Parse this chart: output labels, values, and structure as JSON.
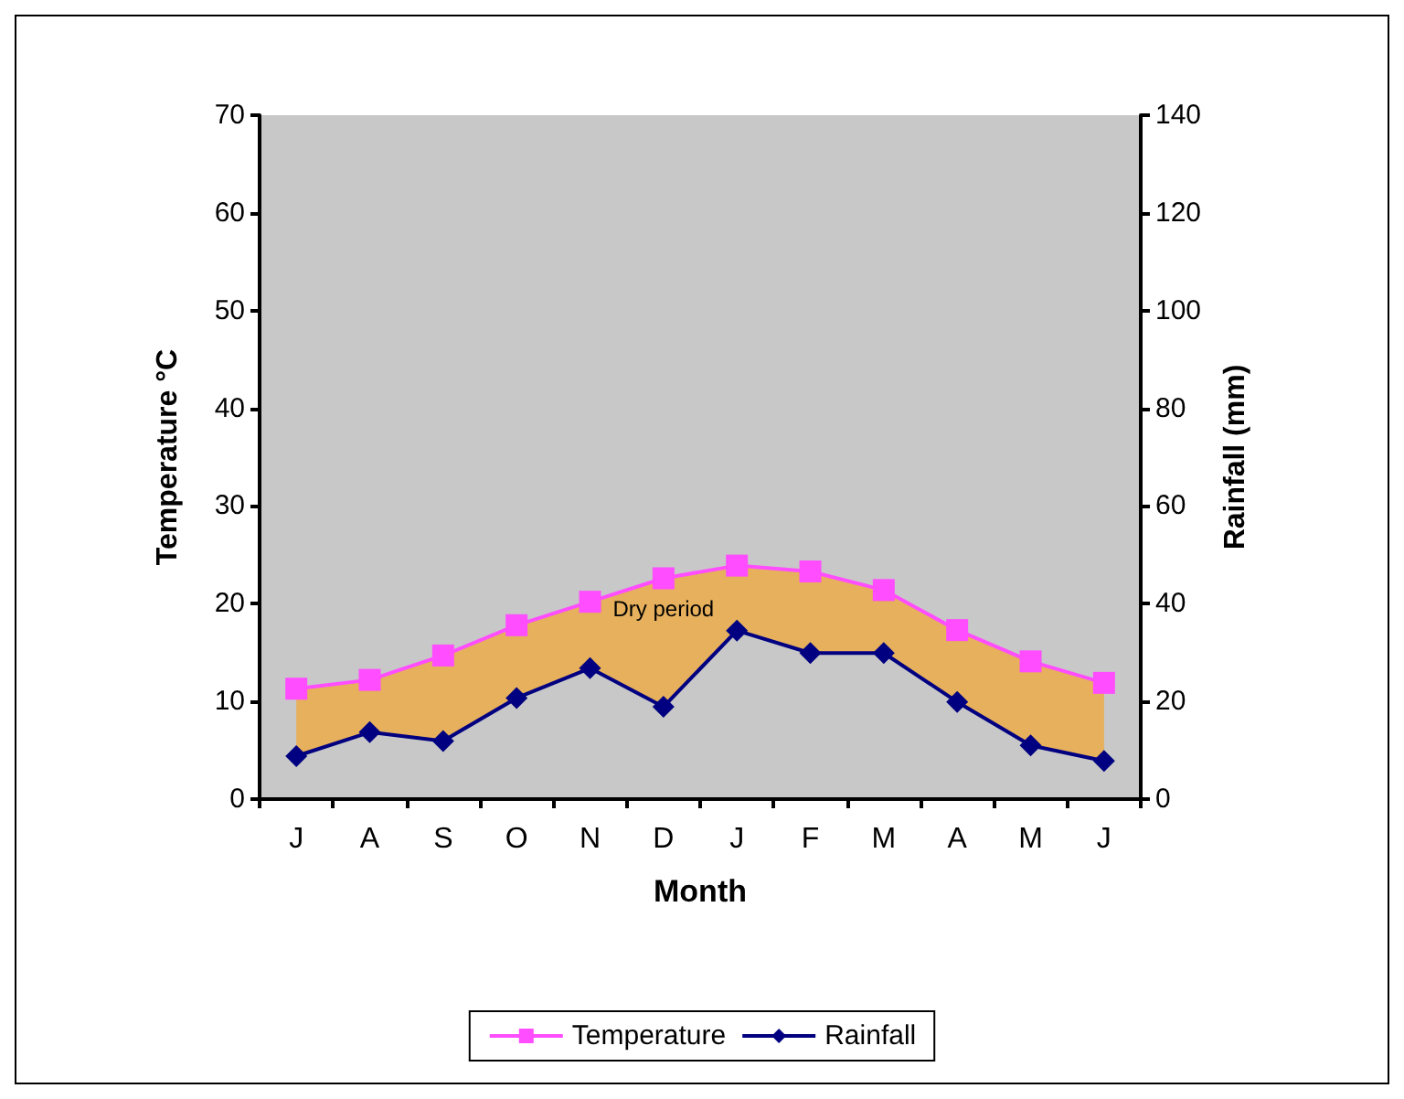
{
  "chart_data": {
    "type": "line",
    "xlabel": "Month",
    "ylabel": "Temperature °C",
    "y2label": "Rainfall (mm)",
    "categories": [
      "J",
      "A",
      "S",
      "O",
      "N",
      "D",
      "J",
      "F",
      "M",
      "A",
      "M",
      "J"
    ],
    "series": [
      {
        "name": "Temperature",
        "color": "#ff4dff",
        "marker": "square",
        "values": [
          11.3,
          12.2,
          14.7,
          17.8,
          20.2,
          22.6,
          23.9,
          23.3,
          21.4,
          17.3,
          14.1,
          11.9
        ],
        "lower": [
          4.4,
          6.9,
          6,
          10.4,
          13.4,
          9.5,
          17.3,
          15,
          15,
          10,
          5.5,
          3.9
        ],
        "upper": [
          11.3,
          12.2,
          14.7,
          17.8,
          20.2,
          22.6,
          23.9,
          23.3,
          21.4,
          17.3,
          14.1,
          11.9
        ]
      },
      {
        "name": "Rainfall",
        "color": "#000080",
        "marker": "diamond",
        "axis": "y2",
        "values": [
          8.8,
          13.7,
          11.9,
          20.7,
          26.8,
          18.9,
          34.5,
          29.9,
          29.9,
          19.9,
          11,
          7.8
        ]
      }
    ],
    "ylim": [
      0,
      70
    ],
    "yticks": [
      0,
      10,
      20,
      30,
      40,
      50,
      60,
      70
    ],
    "y2lim": [
      0,
      140
    ],
    "y2ticks": [
      0,
      20,
      40,
      60,
      80,
      100,
      120,
      140
    ],
    "annotations": [
      "Dry period"
    ],
    "grid": false,
    "legend": "bottom"
  }
}
